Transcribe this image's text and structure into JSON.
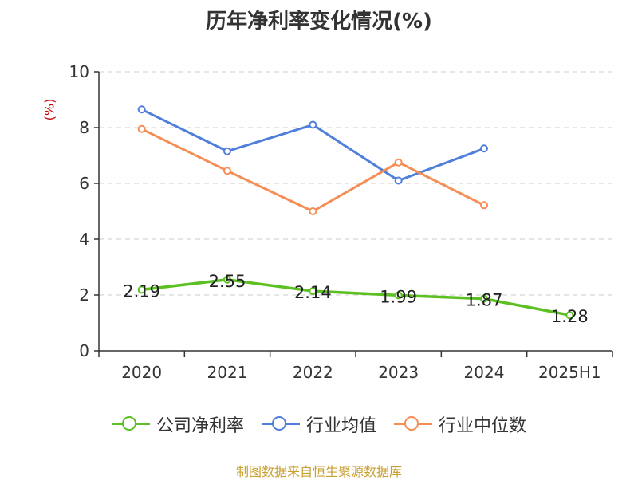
{
  "chart_data": {
    "type": "line",
    "title": "历年净利率变化情况(%)",
    "ylabel": "(%)",
    "xlabel": "",
    "categories": [
      "2020",
      "2021",
      "2022",
      "2023",
      "2024",
      "2025H1"
    ],
    "ylim": [
      0,
      10
    ],
    "yticks": [
      0,
      2,
      4,
      6,
      8,
      10
    ],
    "grid": true,
    "legend_position": "bottom",
    "series": [
      {
        "name": "公司净利率",
        "values": [
          2.19,
          2.55,
          2.14,
          1.99,
          1.87,
          1.28
        ],
        "color": "#5cbf22",
        "labels": [
          "2.19",
          "2.55",
          "2.14",
          "1.99",
          "1.87",
          "1.28"
        ]
      },
      {
        "name": "行业均值",
        "values": [
          8.65,
          7.15,
          8.1,
          6.1,
          7.25,
          null
        ],
        "color": "#4f7fdb"
      },
      {
        "name": "行业中位数",
        "values": [
          7.95,
          6.45,
          5.0,
          6.75,
          5.22,
          null
        ],
        "color": "#f58d54"
      }
    ]
  },
  "source": "制图数据来自恒生聚源数据库"
}
